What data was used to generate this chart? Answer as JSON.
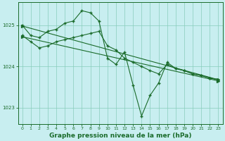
{
  "background_color": "#c8eef0",
  "plot_bg_color": "#c8eef0",
  "grid_color": "#88ccbb",
  "line_color": "#1a6b2a",
  "xlabel": "Graphe pression niveau de la mer (hPa)",
  "xlabel_fontsize": 6.5,
  "xlim": [
    -0.5,
    23.5
  ],
  "ylim": [
    1022.6,
    1025.55
  ],
  "yticks": [
    1023,
    1024,
    1025
  ],
  "xticks": [
    0,
    1,
    2,
    3,
    4,
    5,
    6,
    7,
    8,
    9,
    10,
    11,
    12,
    13,
    14,
    15,
    16,
    17,
    18,
    19,
    20,
    21,
    22,
    23
  ],
  "series": [
    {
      "x": [
        0,
        1,
        2,
        3,
        4,
        5,
        6,
        7,
        8,
        9,
        10,
        11,
        12,
        13,
        14,
        15,
        16,
        17,
        18,
        19,
        20,
        21,
        22,
        23
      ],
      "y": [
        1025.0,
        1024.75,
        1024.7,
        1024.85,
        1024.9,
        1025.05,
        1025.1,
        1025.35,
        1025.3,
        1025.1,
        1024.2,
        1024.05,
        1024.35,
        1023.55,
        1022.8,
        1023.3,
        1023.6,
        1024.1,
        1023.95,
        1023.9,
        1023.82,
        1023.78,
        1023.72,
        1023.68
      ],
      "marker": "+"
    },
    {
      "x": [
        0,
        1,
        2,
        3,
        4,
        5,
        6,
        7,
        8,
        9,
        10,
        11,
        12,
        13,
        14,
        15,
        16,
        17,
        18,
        19,
        20,
        21,
        22,
        23
      ],
      "y": [
        1024.75,
        1024.6,
        1024.45,
        1024.5,
        1024.6,
        1024.65,
        1024.7,
        1024.75,
        1024.8,
        1024.85,
        1024.5,
        1024.4,
        1024.2,
        1024.1,
        1024.0,
        1023.9,
        1023.82,
        1024.05,
        1023.95,
        1023.9,
        1023.82,
        1023.78,
        1023.72,
        1023.68
      ],
      "marker": "+"
    },
    {
      "x": [
        0,
        23
      ],
      "y": [
        1024.98,
        1023.68
      ],
      "marker": ">"
    },
    {
      "x": [
        0,
        23
      ],
      "y": [
        1024.72,
        1023.65
      ],
      "marker": ">"
    }
  ]
}
